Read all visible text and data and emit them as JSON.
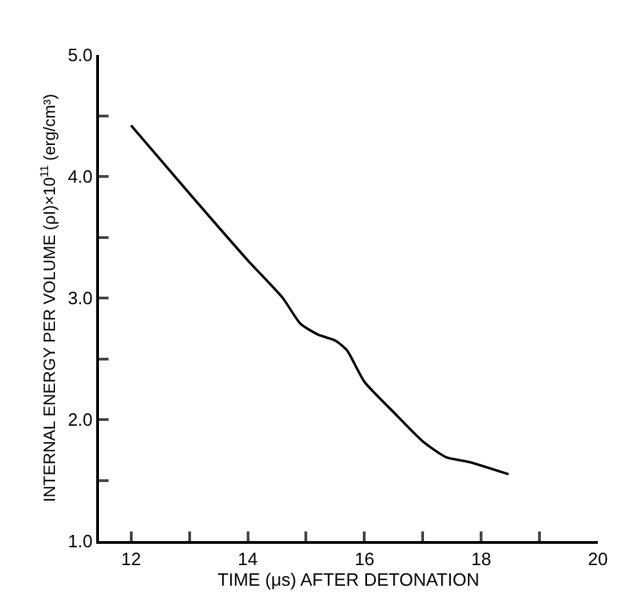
{
  "chart_data": {
    "type": "line",
    "xlabel": "TIME (μs) AFTER DETONATION",
    "ylabel": "INTERNAL ENERGY PER VOLUME (ρI)×10$^{11}$ (erg/cm³)",
    "series": [
      {
        "color": "#000000",
        "x": [
          12,
          13,
          14,
          14.6,
          14.9,
          15.2,
          15.5,
          15.7,
          16,
          16.5,
          17,
          17.4,
          17.8,
          18.47
        ],
        "values": [
          4.42,
          3.86,
          3.31,
          3.0,
          2.79,
          2.7,
          2.65,
          2.57,
          2.31,
          2.06,
          1.82,
          1.69,
          1.65,
          1.55
        ]
      }
    ],
    "xlim": [
      11.45,
      20
    ],
    "ylim": [
      1.0,
      5.0
    ],
    "xticks": [
      12,
      {
        "value": 13,
        "label": null
      },
      14,
      {
        "value": 15,
        "label": null
      },
      16,
      {
        "value": 17,
        "label": null
      },
      18,
      {
        "value": 19,
        "label": null
      },
      20
    ],
    "yticks": [
      {
        "value": 1.0,
        "label": "1.0"
      },
      {
        "value": 1.5,
        "label": null
      },
      {
        "value": 2.0,
        "label": "2.0"
      },
      {
        "value": 2.5,
        "label": null
      },
      {
        "value": 3.0,
        "label": "3.0"
      },
      {
        "value": 3.5,
        "label": null
      },
      {
        "value": 4.0,
        "label": "4.0"
      },
      {
        "value": 4.5,
        "label": null
      },
      {
        "value": 5.0,
        "label": "5.0"
      }
    ],
    "grid": false,
    "marker": "none",
    "line_style": "solid"
  }
}
